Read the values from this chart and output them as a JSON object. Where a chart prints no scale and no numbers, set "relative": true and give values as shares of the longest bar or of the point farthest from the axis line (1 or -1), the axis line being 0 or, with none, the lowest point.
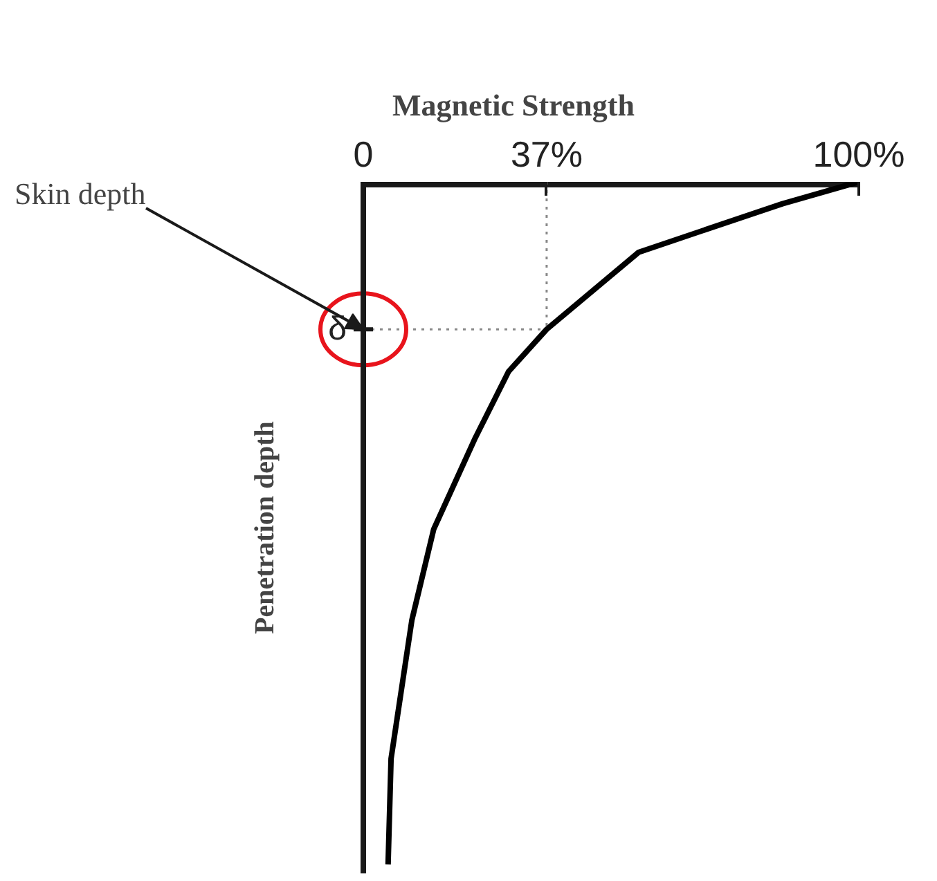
{
  "chart_data": {
    "type": "line",
    "title": "Magnetic Strength",
    "ylabel": "Penetration depth",
    "relative": true,
    "x": [
      5.0,
      5.6,
      9.8,
      14.2,
      22.6,
      29.3,
      37,
      55.6,
      84.6,
      100
    ],
    "series": [
      {
        "color": "#000000",
        "values": [
          -1,
          -0.845,
          -0.642,
          -0.509,
          -0.375,
          -0.278,
          -0.216,
          -0.103,
          -0.032,
          0
        ]
      }
    ],
    "xlim": [
      0,
      100
    ],
    "xticks": [
      {
        "value": 0,
        "label": "0"
      },
      {
        "value": 37,
        "label": "37%"
      },
      {
        "value": 100,
        "label": "100%"
      }
    ],
    "grid": false,
    "ref_lines": [
      {
        "axis": "x",
        "value": 37,
        "color": "#888888",
        "line_style": "dotted"
      },
      {
        "axis": "y",
        "value": -0.216,
        "color": "#888888",
        "line_style": "dotted"
      }
    ],
    "annotations": [
      {
        "text": "δ",
        "x": 0,
        "y": -0.216
      },
      {
        "text": "Skin depth",
        "x": 0,
        "y": -0.216
      }
    ]
  }
}
